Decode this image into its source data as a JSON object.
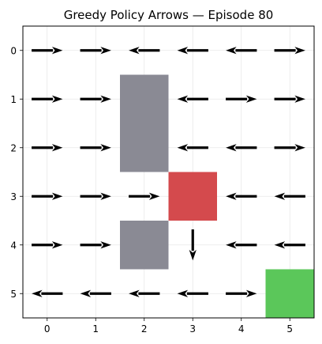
{
  "chart_data": {
    "type": "heatmap",
    "title": "Greedy Policy Arrows — Episode 80",
    "xlabel": "",
    "ylabel": "",
    "grid": true,
    "xlim": [
      -0.5,
      5.5
    ],
    "ylim": [
      -0.5,
      5.5
    ],
    "y_inverted": true,
    "x_ticks": [
      "0",
      "1",
      "2",
      "3",
      "4",
      "5"
    ],
    "y_ticks": [
      "0",
      "1",
      "2",
      "3",
      "4",
      "5"
    ],
    "cells": [
      {
        "x": 2,
        "y": 1,
        "kind": "wall",
        "color": "#8a8a94"
      },
      {
        "x": 2,
        "y": 2,
        "kind": "wall",
        "color": "#8a8a94"
      },
      {
        "x": 2,
        "y": 4,
        "kind": "wall",
        "color": "#8a8a94"
      },
      {
        "x": 3,
        "y": 3,
        "kind": "trap",
        "color": "#d44a4d"
      },
      {
        "x": 5,
        "y": 5,
        "kind": "goal",
        "color": "#5bc75a"
      }
    ],
    "policy": [
      {
        "x": 0,
        "y": 0,
        "dir": "right"
      },
      {
        "x": 1,
        "y": 0,
        "dir": "right"
      },
      {
        "x": 2,
        "y": 0,
        "dir": "left"
      },
      {
        "x": 3,
        "y": 0,
        "dir": "left"
      },
      {
        "x": 4,
        "y": 0,
        "dir": "left"
      },
      {
        "x": 5,
        "y": 0,
        "dir": "right"
      },
      {
        "x": 0,
        "y": 1,
        "dir": "right"
      },
      {
        "x": 1,
        "y": 1,
        "dir": "right"
      },
      {
        "x": 3,
        "y": 1,
        "dir": "left"
      },
      {
        "x": 4,
        "y": 1,
        "dir": "right"
      },
      {
        "x": 5,
        "y": 1,
        "dir": "right"
      },
      {
        "x": 0,
        "y": 2,
        "dir": "right"
      },
      {
        "x": 1,
        "y": 2,
        "dir": "right"
      },
      {
        "x": 3,
        "y": 2,
        "dir": "left"
      },
      {
        "x": 4,
        "y": 2,
        "dir": "left"
      },
      {
        "x": 5,
        "y": 2,
        "dir": "right"
      },
      {
        "x": 0,
        "y": 3,
        "dir": "right"
      },
      {
        "x": 1,
        "y": 3,
        "dir": "right"
      },
      {
        "x": 2,
        "y": 3,
        "dir": "right"
      },
      {
        "x": 4,
        "y": 3,
        "dir": "left"
      },
      {
        "x": 5,
        "y": 3,
        "dir": "left"
      },
      {
        "x": 0,
        "y": 4,
        "dir": "right"
      },
      {
        "x": 1,
        "y": 4,
        "dir": "right"
      },
      {
        "x": 3,
        "y": 4,
        "dir": "down"
      },
      {
        "x": 4,
        "y": 4,
        "dir": "left"
      },
      {
        "x": 5,
        "y": 4,
        "dir": "left"
      },
      {
        "x": 0,
        "y": 5,
        "dir": "left"
      },
      {
        "x": 1,
        "y": 5,
        "dir": "left"
      },
      {
        "x": 2,
        "y": 5,
        "dir": "left"
      },
      {
        "x": 3,
        "y": 5,
        "dir": "left"
      },
      {
        "x": 4,
        "y": 5,
        "dir": "right"
      }
    ]
  }
}
